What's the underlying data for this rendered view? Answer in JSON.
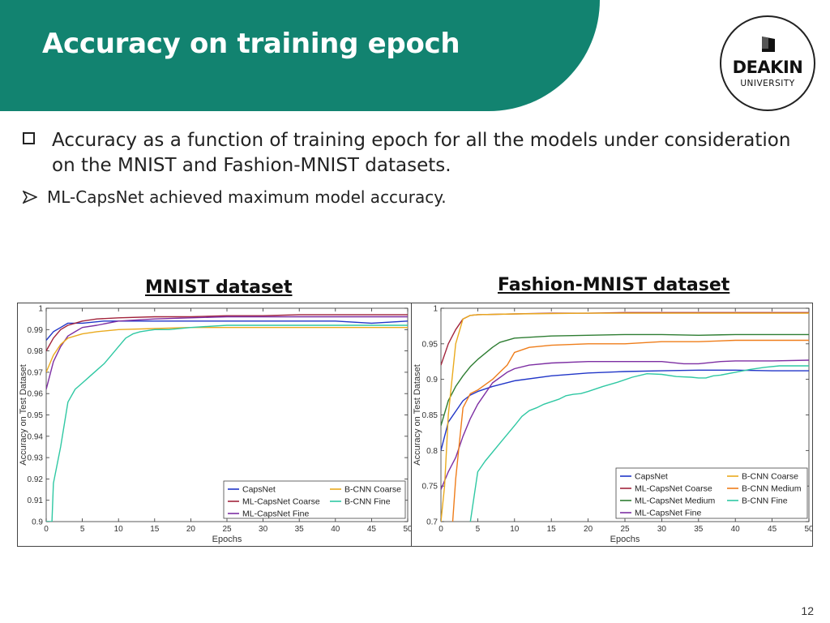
{
  "slide": {
    "title": "Accuracy on training epoch",
    "bullet1": "Accuracy as a function of training epoch for all the models under consideration on the MNIST and Fashion-MNIST datasets.",
    "bullet2": "ML-CapsNet achieved maximum model accuracy.",
    "page_number": "12"
  },
  "logo": {
    "name": "DEAKIN",
    "sub": "UNIVERSITY"
  },
  "colors": {
    "header": "#128370",
    "CapsNet": "#2136c8",
    "ML-CapsNet Coarse": "#a2243c",
    "ML-CapsNet Fine": "#7d2fa3",
    "ML-CapsNet Medium": "#2e7d32",
    "B-CNN Coarse": "#eaaa1e",
    "B-CNN Medium": "#ef7d1a",
    "B-CNN Fine": "#2fc8a3"
  },
  "chart_data": [
    {
      "id": "mnist",
      "type": "line",
      "title": "MNIST dataset",
      "xlabel": "Epochs",
      "ylabel": "Accuracy on Test Dataset",
      "xlim": [
        0,
        50
      ],
      "ylim": [
        0.9,
        1
      ],
      "xticks": [
        0,
        5,
        10,
        15,
        20,
        25,
        30,
        35,
        40,
        45,
        50
      ],
      "yticks": [
        0.9,
        0.91,
        0.92,
        0.93,
        0.94,
        0.95,
        0.96,
        0.97,
        0.98,
        0.99,
        1
      ],
      "ytick_labels": [
        "0.9",
        "0.91",
        "0.92",
        "0.93",
        "0.94",
        "0.95",
        "0.96",
        "0.97",
        "0.98",
        "0.99",
        "1"
      ],
      "grid": false,
      "legend": {
        "placement": "bottom-right",
        "columns": 2,
        "order": [
          "CapsNet",
          "B-CNN Coarse",
          "ML-CapsNet Coarse",
          "B-CNN Fine",
          "ML-CapsNet Fine"
        ]
      },
      "series": [
        {
          "name": "CapsNet",
          "x": [
            0,
            1,
            2,
            3,
            4,
            5,
            8,
            10,
            15,
            20,
            25,
            30,
            35,
            40,
            45,
            50
          ],
          "y": [
            0.985,
            0.989,
            0.991,
            0.993,
            0.993,
            0.993,
            0.994,
            0.994,
            0.994,
            0.994,
            0.994,
            0.994,
            0.994,
            0.994,
            0.993,
            0.994
          ]
        },
        {
          "name": "ML-CapsNet Coarse",
          "x": [
            0,
            1,
            2,
            3,
            4,
            5,
            7,
            10,
            15,
            20,
            25,
            30,
            35,
            40,
            45,
            50
          ],
          "y": [
            0.98,
            0.986,
            0.99,
            0.992,
            0.993,
            0.994,
            0.995,
            0.9955,
            0.996,
            0.996,
            0.9965,
            0.9965,
            0.997,
            0.997,
            0.997,
            0.997
          ]
        },
        {
          "name": "ML-CapsNet Fine",
          "x": [
            0,
            1,
            2,
            3,
            4,
            5,
            7,
            10,
            15,
            20,
            25,
            30,
            35,
            40,
            45,
            50
          ],
          "y": [
            0.962,
            0.975,
            0.982,
            0.987,
            0.989,
            0.991,
            0.992,
            0.994,
            0.995,
            0.9955,
            0.996,
            0.996,
            0.996,
            0.996,
            0.996,
            0.996
          ]
        },
        {
          "name": "B-CNN Coarse",
          "x": [
            0,
            1,
            2,
            3,
            4,
            5,
            7,
            10,
            15,
            20,
            25,
            30,
            35,
            40,
            45,
            50
          ],
          "y": [
            0.97,
            0.978,
            0.983,
            0.986,
            0.987,
            0.988,
            0.989,
            0.99,
            0.9905,
            0.991,
            0.991,
            0.991,
            0.991,
            0.991,
            0.991,
            0.991
          ]
        },
        {
          "name": "B-CNN Fine",
          "x": [
            0,
            0.8,
            1,
            2,
            3,
            4,
            5,
            6,
            7,
            8,
            9,
            10,
            11,
            12,
            13,
            14,
            15,
            17,
            20,
            25,
            30,
            35,
            40,
            45,
            50
          ],
          "y": [
            0.9,
            0.9,
            0.918,
            0.935,
            0.956,
            0.962,
            0.965,
            0.968,
            0.971,
            0.974,
            0.978,
            0.982,
            0.986,
            0.988,
            0.989,
            0.9895,
            0.99,
            0.99,
            0.991,
            0.992,
            0.992,
            0.992,
            0.992,
            0.992,
            0.992
          ]
        }
      ]
    },
    {
      "id": "fashion",
      "type": "line",
      "title": "Fashion-MNIST dataset",
      "xlabel": "Epochs",
      "ylabel": "Accuracy on Test Dataset",
      "xlim": [
        0,
        50
      ],
      "ylim": [
        0.7,
        1
      ],
      "xticks": [
        0,
        5,
        10,
        15,
        20,
        25,
        30,
        35,
        40,
        45,
        50
      ],
      "yticks": [
        0.7,
        0.75,
        0.8,
        0.85,
        0.9,
        0.95,
        1
      ],
      "ytick_labels": [
        "0.7",
        "0.75",
        "0.8",
        "0.85",
        "0.9",
        "0.95",
        "1"
      ],
      "grid": false,
      "legend": {
        "placement": "bottom-right",
        "columns": 2,
        "order": [
          "CapsNet",
          "B-CNN Coarse",
          "ML-CapsNet Coarse",
          "B-CNN Medium",
          "ML-CapsNet Medium",
          "B-CNN Fine",
          "ML-CapsNet Fine"
        ]
      },
      "series": [
        {
          "name": "CapsNet",
          "x": [
            0,
            1,
            2,
            3,
            4,
            5,
            7,
            10,
            15,
            20,
            25,
            30,
            35,
            40,
            45,
            50
          ],
          "y": [
            0.8,
            0.84,
            0.855,
            0.87,
            0.878,
            0.883,
            0.89,
            0.898,
            0.905,
            0.909,
            0.911,
            0.912,
            0.913,
            0.913,
            0.912,
            0.912
          ]
        },
        {
          "name": "ML-CapsNet Coarse",
          "x": [
            0,
            1,
            2,
            3,
            4,
            5,
            10,
            15,
            20,
            25,
            30,
            35,
            40,
            45,
            50
          ],
          "y": [
            0.92,
            0.95,
            0.97,
            0.985,
            0.99,
            0.991,
            0.992,
            0.993,
            0.993,
            0.994,
            0.994,
            0.994,
            0.994,
            0.994,
            0.994
          ]
        },
        {
          "name": "ML-CapsNet Medium",
          "x": [
            0,
            1,
            2,
            3,
            4,
            5,
            7,
            8,
            10,
            15,
            20,
            25,
            30,
            35,
            40,
            45,
            50
          ],
          "y": [
            0.835,
            0.87,
            0.89,
            0.905,
            0.918,
            0.928,
            0.945,
            0.952,
            0.958,
            0.961,
            0.962,
            0.963,
            0.963,
            0.962,
            0.963,
            0.963,
            0.963
          ]
        },
        {
          "name": "ML-CapsNet Fine",
          "x": [
            0,
            1,
            2,
            3,
            4,
            5,
            7,
            9,
            10,
            12,
            15,
            20,
            25,
            30,
            33,
            35,
            38,
            40,
            45,
            50
          ],
          "y": [
            0.745,
            0.77,
            0.79,
            0.82,
            0.845,
            0.865,
            0.895,
            0.91,
            0.915,
            0.92,
            0.923,
            0.925,
            0.925,
            0.925,
            0.922,
            0.922,
            0.925,
            0.926,
            0.926,
            0.927
          ]
        },
        {
          "name": "B-CNN Coarse",
          "x": [
            0,
            0.5,
            1,
            2,
            3,
            4,
            5,
            10,
            20,
            30,
            40,
            50
          ],
          "y": [
            0.7,
            0.75,
            0.85,
            0.95,
            0.985,
            0.99,
            0.991,
            0.992,
            0.993,
            0.993,
            0.993,
            0.993
          ]
        },
        {
          "name": "B-CNN Medium",
          "x": [
            1.6,
            2,
            3,
            4,
            5,
            7,
            8,
            9,
            10,
            12,
            15,
            20,
            25,
            30,
            35,
            40,
            45,
            50
          ],
          "y": [
            0.7,
            0.76,
            0.86,
            0.88,
            0.885,
            0.9,
            0.91,
            0.92,
            0.938,
            0.945,
            0.948,
            0.95,
            0.95,
            0.953,
            0.953,
            0.955,
            0.955,
            0.955
          ]
        },
        {
          "name": "B-CNN Fine",
          "x": [
            4,
            5,
            6,
            8,
            10,
            11,
            12,
            13,
            14,
            16,
            17,
            18,
            19,
            20,
            22,
            24,
            26,
            28,
            30,
            32,
            34,
            35,
            36,
            37,
            38,
            40,
            42,
            44,
            46,
            48,
            50
          ],
          "y": [
            0.7,
            0.77,
            0.785,
            0.81,
            0.835,
            0.848,
            0.856,
            0.86,
            0.865,
            0.872,
            0.877,
            0.879,
            0.88,
            0.883,
            0.89,
            0.896,
            0.903,
            0.908,
            0.907,
            0.904,
            0.903,
            0.902,
            0.902,
            0.905,
            0.906,
            0.91,
            0.914,
            0.917,
            0.919,
            0.919,
            0.919
          ]
        }
      ]
    }
  ]
}
